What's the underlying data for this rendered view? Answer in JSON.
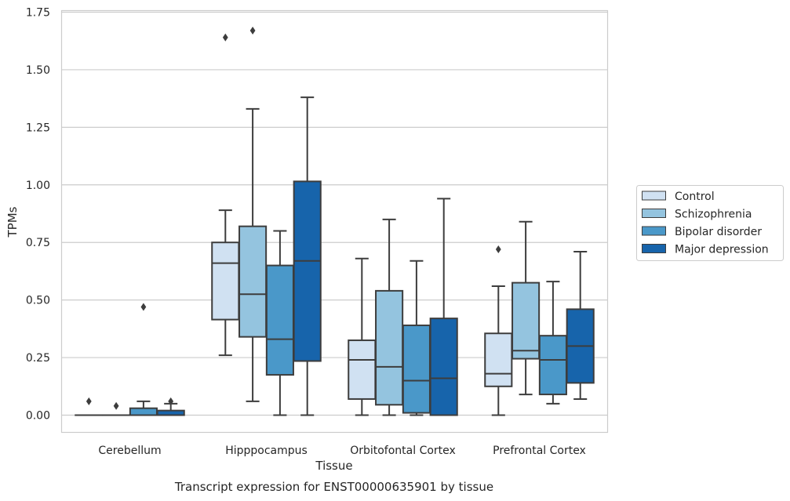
{
  "chart_data": {
    "type": "box",
    "title": "",
    "caption": "Transcript expression for ENST00000635901 by tissue",
    "xlabel": "Tissue",
    "ylabel": "TPMs",
    "ylim": [
      -0.08,
      1.76
    ],
    "yticks": [
      "0.00",
      "0.25",
      "0.50",
      "0.75",
      "1.00",
      "1.25",
      "1.50",
      "1.75"
    ],
    "ytick_values": [
      0,
      0.25,
      0.5,
      0.75,
      1.0,
      1.25,
      1.5,
      1.75
    ],
    "grid": "horizontal",
    "legend_position": "right",
    "categories": [
      "Cerebellum",
      "Hipppocampus",
      "Orbitofontal Cortex",
      "Prefrontal Cortex"
    ],
    "series": [
      {
        "name": "Control",
        "color": "#d0e1f2",
        "boxes": [
          {
            "whislo": 0.0,
            "q1": 0.0,
            "med": 0.0,
            "q3": 0.0,
            "whishi": 0.0,
            "fliers": [
              0.06
            ]
          },
          {
            "whislo": 0.26,
            "q1": 0.415,
            "med": 0.66,
            "q3": 0.75,
            "whishi": 0.89,
            "fliers": [
              1.64
            ]
          },
          {
            "whislo": 0.0,
            "q1": 0.07,
            "med": 0.24,
            "q3": 0.325,
            "whishi": 0.68,
            "fliers": []
          },
          {
            "whislo": 0.0,
            "q1": 0.125,
            "med": 0.18,
            "q3": 0.355,
            "whishi": 0.56,
            "fliers": [
              0.72
            ]
          }
        ]
      },
      {
        "name": "Schizophrenia",
        "color": "#94c4df",
        "boxes": [
          {
            "whislo": 0.0,
            "q1": 0.0,
            "med": 0.0,
            "q3": 0.0,
            "whishi": 0.0,
            "fliers": [
              0.04
            ]
          },
          {
            "whislo": 0.06,
            "q1": 0.34,
            "med": 0.525,
            "q3": 0.82,
            "whishi": 1.33,
            "fliers": [
              1.67
            ]
          },
          {
            "whislo": 0.0,
            "q1": 0.045,
            "med": 0.21,
            "q3": 0.54,
            "whishi": 0.85,
            "fliers": []
          },
          {
            "whislo": 0.09,
            "q1": 0.245,
            "med": 0.28,
            "q3": 0.575,
            "whishi": 0.84,
            "fliers": []
          }
        ]
      },
      {
        "name": "Bipolar disorder",
        "color": "#4a98c9",
        "boxes": [
          {
            "whislo": 0.0,
            "q1": 0.0,
            "med": 0.0,
            "q3": 0.03,
            "whishi": 0.06,
            "fliers": [
              0.47
            ]
          },
          {
            "whislo": 0.0,
            "q1": 0.175,
            "med": 0.33,
            "q3": 0.65,
            "whishi": 0.8,
            "fliers": []
          },
          {
            "whislo": 0.0,
            "q1": 0.01,
            "med": 0.15,
            "q3": 0.39,
            "whishi": 0.67,
            "fliers": []
          },
          {
            "whislo": 0.05,
            "q1": 0.09,
            "med": 0.24,
            "q3": 0.345,
            "whishi": 0.58,
            "fliers": []
          }
        ]
      },
      {
        "name": "Major depression",
        "color": "#1764ab",
        "boxes": [
          {
            "whislo": 0.0,
            "q1": 0.0,
            "med": 0.0,
            "q3": 0.02,
            "whishi": 0.05,
            "fliers": [
              0.06
            ]
          },
          {
            "whislo": 0.0,
            "q1": 0.235,
            "med": 0.67,
            "q3": 1.015,
            "whishi": 1.38,
            "fliers": []
          },
          {
            "whislo": 0.0,
            "q1": 0.0,
            "med": 0.16,
            "q3": 0.42,
            "whishi": 0.94,
            "fliers": []
          },
          {
            "whislo": 0.07,
            "q1": 0.14,
            "med": 0.3,
            "q3": 0.46,
            "whishi": 0.71,
            "fliers": []
          }
        ]
      }
    ]
  }
}
